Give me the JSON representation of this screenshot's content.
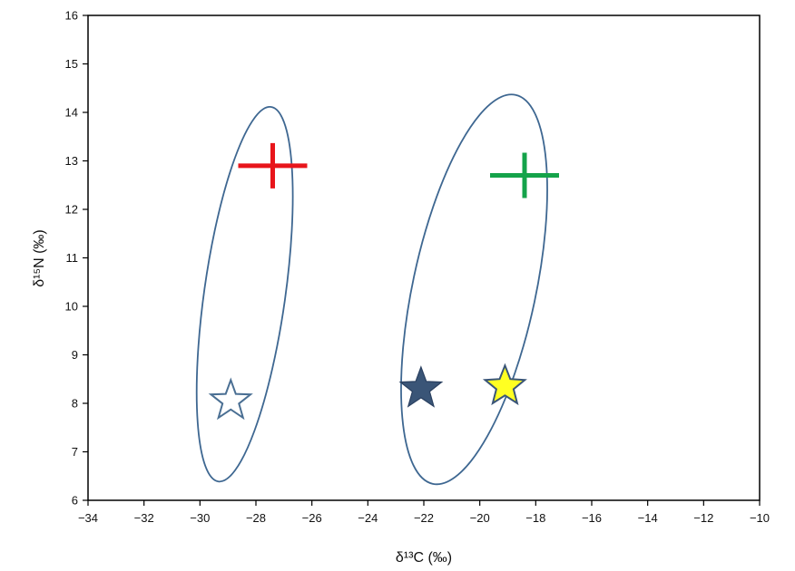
{
  "chart_data": {
    "type": "scatter",
    "xlabel": "δ¹³C (‰)",
    "ylabel": "δ¹⁵N (‰)",
    "xlim": [
      -34,
      -10
    ],
    "ylim": [
      6,
      16
    ],
    "x_ticks": [
      -34,
      -32,
      -30,
      -28,
      -26,
      -24,
      -22,
      -20,
      -18,
      -16,
      -14,
      -12,
      -10
    ],
    "y_ticks": [
      6,
      7,
      8,
      9,
      10,
      11,
      12,
      13,
      14,
      15,
      16
    ],
    "x_tick_labels": [
      "−34",
      "−32",
      "−30",
      "−28",
      "−26",
      "−24",
      "−22",
      "−20",
      "−18",
      "−16",
      "−14",
      "−12",
      "−10"
    ],
    "y_tick_labels": [
      "6",
      "7",
      "8",
      "9",
      "10",
      "11",
      "12",
      "13",
      "14",
      "15",
      "16"
    ],
    "grid": false,
    "points": [
      {
        "marker": "cross",
        "color": "#e8151b",
        "x": -27.4,
        "y": 12.9
      },
      {
        "marker": "cross",
        "color": "#14a34a",
        "x": -18.4,
        "y": 12.7
      },
      {
        "marker": "star-open",
        "color": "#4a6f93",
        "x": -28.9,
        "y": 8.05
      },
      {
        "marker": "star-filled",
        "color": "#3a5577",
        "x": -22.1,
        "y": 8.3
      },
      {
        "marker": "star-yellow",
        "color": "#ffff22",
        "x": -19.1,
        "y": 8.35
      }
    ],
    "ellipses": [
      {
        "cx": -28.4,
        "cy": 10.25,
        "rx": 1.45,
        "ry": 3.9,
        "angle_deg": 8,
        "color": "#3e6791"
      },
      {
        "cx": -20.2,
        "cy": 10.35,
        "rx": 2.2,
        "ry": 4.1,
        "angle_deg": 12,
        "color": "#3e6791"
      }
    ]
  }
}
